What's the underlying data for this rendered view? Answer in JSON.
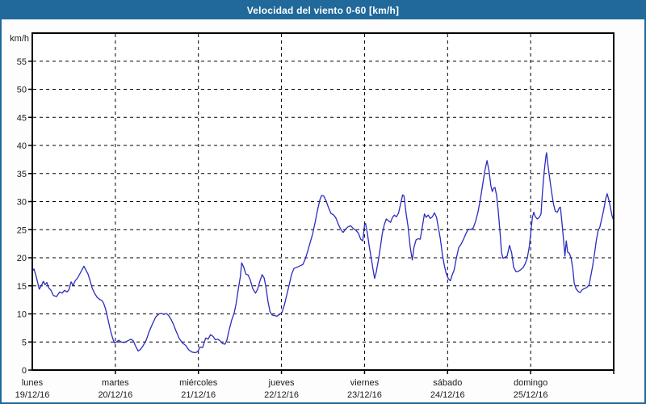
{
  "window": {
    "title": "Velocidad del viento 0-60 [km/h]"
  },
  "colors": {
    "titlebar_bg": "#21699a",
    "titlebar_text": "#ffffff",
    "frame_border": "#21699a",
    "chart_bg": "#fcfdfc",
    "plot_bg": "#ffffff",
    "axis": "#000000",
    "grid": "#000000",
    "line": "#2b2bbf",
    "text": "#1a1a1a"
  },
  "chart_data": {
    "type": "line",
    "title": "Velocidad del viento 0-60 [km/h]",
    "xlabel": "",
    "ylabel": "km/h",
    "ylim": [
      0,
      60
    ],
    "yticks": [
      0,
      5,
      10,
      15,
      20,
      25,
      30,
      35,
      40,
      45,
      50,
      55
    ],
    "grid": "dashed",
    "legend_position": "none",
    "x_unit": "hours_from_start",
    "hours_per_day": 24,
    "days": [
      {
        "name": "lunes",
        "date": "19/12/16"
      },
      {
        "name": "martes",
        "date": "20/12/16"
      },
      {
        "name": "miércoles",
        "date": "21/12/16"
      },
      {
        "name": "jueves",
        "date": "22/12/16"
      },
      {
        "name": "viernes",
        "date": "23/12/16"
      },
      {
        "name": "sábado",
        "date": "24/12/16"
      },
      {
        "name": "domingo",
        "date": "25/12/16"
      }
    ],
    "series": [
      {
        "name": "Velocidad del viento",
        "unit": "km/h",
        "points": [
          [
            0,
            17.6
          ],
          [
            0.5,
            18.0
          ],
          [
            1.2,
            16.5
          ],
          [
            2.0,
            14.4
          ],
          [
            2.6,
            15.0
          ],
          [
            3.2,
            15.8
          ],
          [
            3.7,
            15.2
          ],
          [
            4.2,
            15.6
          ],
          [
            4.7,
            14.7
          ],
          [
            5.4,
            14.2
          ],
          [
            6.1,
            13.3
          ],
          [
            7.0,
            13.1
          ],
          [
            7.9,
            13.9
          ],
          [
            8.6,
            13.7
          ],
          [
            9.3,
            14.2
          ],
          [
            10.0,
            13.9
          ],
          [
            10.6,
            14.3
          ],
          [
            11.2,
            15.7
          ],
          [
            11.8,
            15.1
          ],
          [
            12.4,
            15.9
          ],
          [
            13.1,
            16.4
          ],
          [
            13.8,
            17.2
          ],
          [
            14.5,
            18.0
          ],
          [
            14.9,
            18.5
          ],
          [
            15.5,
            17.8
          ],
          [
            16.1,
            17.1
          ],
          [
            16.7,
            15.9
          ],
          [
            17.3,
            14.6
          ],
          [
            18.0,
            13.7
          ],
          [
            18.7,
            13.0
          ],
          [
            19.4,
            12.6
          ],
          [
            20.1,
            12.4
          ],
          [
            20.6,
            11.9
          ],
          [
            21.2,
            10.8
          ],
          [
            21.9,
            8.9
          ],
          [
            22.6,
            7.0
          ],
          [
            23.3,
            5.5
          ],
          [
            23.8,
            4.8
          ],
          [
            24.3,
            5.0
          ],
          [
            25.0,
            5.3
          ],
          [
            25.7,
            5.0
          ],
          [
            26.6,
            4.9
          ],
          [
            27.5,
            5.2
          ],
          [
            28.5,
            5.5
          ],
          [
            29.2,
            5.2
          ],
          [
            29.9,
            4.2
          ],
          [
            30.6,
            3.4
          ],
          [
            31.3,
            3.7
          ],
          [
            32.0,
            4.3
          ],
          [
            32.9,
            5.3
          ],
          [
            33.8,
            6.9
          ],
          [
            34.8,
            8.3
          ],
          [
            35.7,
            9.5
          ],
          [
            36.6,
            10.0
          ],
          [
            37.3,
            10.1
          ],
          [
            38.0,
            9.9
          ],
          [
            38.7,
            10.1
          ],
          [
            39.4,
            9.7
          ],
          [
            40.1,
            9.0
          ],
          [
            40.8,
            8.1
          ],
          [
            41.5,
            7.0
          ],
          [
            42.5,
            5.6
          ],
          [
            43.4,
            4.8
          ],
          [
            44.3,
            4.4
          ],
          [
            45.2,
            3.6
          ],
          [
            46.2,
            3.2
          ],
          [
            47.1,
            3.1
          ],
          [
            47.8,
            3.3
          ],
          [
            48.5,
            4.1
          ],
          [
            49.2,
            4.0
          ],
          [
            50.1,
            5.7
          ],
          [
            50.8,
            5.5
          ],
          [
            51.5,
            6.3
          ],
          [
            52.2,
            6.0
          ],
          [
            52.9,
            5.4
          ],
          [
            53.6,
            5.5
          ],
          [
            54.3,
            5.2
          ],
          [
            55.0,
            4.7
          ],
          [
            55.7,
            4.6
          ],
          [
            56.2,
            5.3
          ],
          [
            56.9,
            7.2
          ],
          [
            57.6,
            8.9
          ],
          [
            58.3,
            10.1
          ],
          [
            58.9,
            11.8
          ],
          [
            59.5,
            14.3
          ],
          [
            60.1,
            16.6
          ],
          [
            60.5,
            19.1
          ],
          [
            61.1,
            18.3
          ],
          [
            61.7,
            17.1
          ],
          [
            62.4,
            16.9
          ],
          [
            63.0,
            16.0
          ],
          [
            63.7,
            14.5
          ],
          [
            64.5,
            13.7
          ],
          [
            65.1,
            14.4
          ],
          [
            65.8,
            15.9
          ],
          [
            66.4,
            17.0
          ],
          [
            67.0,
            16.4
          ],
          [
            67.5,
            14.8
          ],
          [
            68.1,
            12.2
          ],
          [
            68.7,
            10.4
          ],
          [
            69.3,
            9.8
          ],
          [
            70.0,
            9.7
          ],
          [
            70.7,
            9.6
          ],
          [
            71.4,
            9.9
          ],
          [
            72.1,
            10.2
          ],
          [
            72.8,
            11.5
          ],
          [
            73.5,
            13.3
          ],
          [
            74.2,
            15.1
          ],
          [
            74.9,
            17.0
          ],
          [
            75.6,
            18.1
          ],
          [
            76.5,
            18.3
          ],
          [
            77.5,
            18.6
          ],
          [
            78.2,
            18.8
          ],
          [
            78.9,
            19.8
          ],
          [
            79.6,
            21.2
          ],
          [
            80.3,
            22.7
          ],
          [
            81.0,
            24.2
          ],
          [
            81.7,
            26.2
          ],
          [
            82.4,
            28.4
          ],
          [
            83.1,
            30.3
          ],
          [
            83.6,
            31.1
          ],
          [
            84.2,
            31.0
          ],
          [
            84.9,
            30.1
          ],
          [
            85.6,
            28.9
          ],
          [
            86.3,
            27.9
          ],
          [
            87.1,
            27.6
          ],
          [
            87.7,
            27.1
          ],
          [
            88.4,
            26.0
          ],
          [
            89.1,
            25.1
          ],
          [
            89.8,
            24.5
          ],
          [
            90.5,
            25.1
          ],
          [
            91.2,
            25.5
          ],
          [
            92.0,
            25.7
          ],
          [
            92.8,
            25.2
          ],
          [
            93.5,
            24.9
          ],
          [
            94.2,
            24.4
          ],
          [
            94.9,
            23.3
          ],
          [
            95.5,
            23.0
          ],
          [
            96.0,
            25.8
          ],
          [
            96.3,
            26.1
          ],
          [
            96.8,
            24.4
          ],
          [
            97.4,
            21.9
          ],
          [
            98.0,
            19.7
          ],
          [
            98.5,
            17.8
          ],
          [
            98.9,
            16.3
          ],
          [
            99.4,
            17.5
          ],
          [
            100.0,
            19.6
          ],
          [
            100.6,
            21.9
          ],
          [
            101.1,
            24.2
          ],
          [
            101.7,
            25.9
          ],
          [
            102.3,
            26.9
          ],
          [
            102.9,
            26.6
          ],
          [
            103.5,
            26.3
          ],
          [
            104.1,
            27.2
          ],
          [
            104.6,
            27.6
          ],
          [
            105.2,
            27.3
          ],
          [
            105.8,
            27.9
          ],
          [
            106.4,
            29.5
          ],
          [
            107.0,
            31.2
          ],
          [
            107.4,
            31.0
          ],
          [
            108.0,
            27.9
          ],
          [
            108.6,
            25.5
          ],
          [
            109.2,
            21.9
          ],
          [
            109.8,
            19.6
          ],
          [
            110.3,
            21.9
          ],
          [
            110.9,
            23.2
          ],
          [
            111.5,
            23.4
          ],
          [
            112.1,
            23.3
          ],
          [
            112.7,
            25.5
          ],
          [
            113.3,
            27.8
          ],
          [
            113.8,
            27.2
          ],
          [
            114.4,
            27.6
          ],
          [
            115.0,
            27.0
          ],
          [
            115.6,
            27.3
          ],
          [
            116.2,
            28.0
          ],
          [
            116.8,
            27.2
          ],
          [
            117.3,
            25.5
          ],
          [
            117.9,
            23.4
          ],
          [
            118.5,
            20.5
          ],
          [
            119.1,
            18.5
          ],
          [
            119.6,
            17.2
          ],
          [
            120.2,
            16.3
          ],
          [
            120.8,
            15.9
          ],
          [
            121.3,
            16.9
          ],
          [
            121.9,
            17.8
          ],
          [
            122.5,
            19.8
          ],
          [
            123.2,
            21.8
          ],
          [
            123.9,
            22.4
          ],
          [
            124.6,
            23.3
          ],
          [
            125.3,
            24.3
          ],
          [
            126.0,
            25.1
          ],
          [
            126.7,
            25.0
          ],
          [
            127.4,
            25.3
          ],
          [
            128.1,
            26.5
          ],
          [
            128.8,
            28.2
          ],
          [
            129.5,
            30.5
          ],
          [
            130.2,
            33.3
          ],
          [
            130.8,
            35.6
          ],
          [
            131.4,
            37.3
          ],
          [
            132.0,
            35.4
          ],
          [
            132.5,
            32.8
          ],
          [
            132.9,
            31.8
          ],
          [
            133.3,
            32.4
          ],
          [
            133.7,
            32.5
          ],
          [
            134.2,
            31.0
          ],
          [
            134.6,
            28.5
          ],
          [
            135.1,
            25.0
          ],
          [
            135.6,
            20.9
          ],
          [
            136.0,
            19.9
          ],
          [
            136.6,
            20.1
          ],
          [
            137.2,
            20.3
          ],
          [
            137.9,
            22.2
          ],
          [
            138.5,
            20.9
          ],
          [
            139.1,
            18.3
          ],
          [
            139.8,
            17.5
          ],
          [
            140.5,
            17.6
          ],
          [
            141.2,
            17.9
          ],
          [
            141.9,
            18.3
          ],
          [
            142.4,
            18.9
          ],
          [
            143.0,
            19.9
          ],
          [
            143.6,
            21.9
          ],
          [
            144.1,
            24.8
          ],
          [
            144.5,
            27.2
          ],
          [
            144.9,
            28.1
          ],
          [
            145.3,
            27.4
          ],
          [
            145.9,
            26.9
          ],
          [
            146.5,
            27.2
          ],
          [
            147.0,
            27.8
          ],
          [
            147.4,
            31.5
          ],
          [
            147.9,
            35.3
          ],
          [
            148.4,
            38.0
          ],
          [
            148.6,
            38.7
          ],
          [
            148.9,
            37.0
          ],
          [
            149.4,
            34.6
          ],
          [
            150.0,
            31.9
          ],
          [
            150.6,
            29.6
          ],
          [
            151.1,
            28.3
          ],
          [
            151.7,
            28.1
          ],
          [
            152.3,
            28.9
          ],
          [
            152.6,
            29.0
          ],
          [
            153.1,
            26.0
          ],
          [
            153.6,
            22.5
          ],
          [
            153.9,
            20.3
          ],
          [
            154.3,
            23.0
          ],
          [
            154.7,
            21.0
          ],
          [
            155.2,
            20.8
          ],
          [
            155.7,
            19.9
          ],
          [
            156.2,
            18.0
          ],
          [
            156.6,
            15.5
          ],
          [
            157.1,
            14.5
          ],
          [
            157.7,
            14.0
          ],
          [
            158.3,
            13.8
          ],
          [
            158.9,
            14.3
          ],
          [
            159.5,
            14.5
          ],
          [
            160.2,
            14.7
          ],
          [
            160.9,
            15.2
          ],
          [
            161.4,
            16.8
          ],
          [
            161.9,
            18.5
          ],
          [
            162.4,
            20.5
          ],
          [
            163.0,
            23.2
          ],
          [
            163.5,
            24.8
          ],
          [
            164.0,
            25.5
          ],
          [
            164.5,
            26.8
          ],
          [
            165.1,
            28.5
          ],
          [
            165.7,
            30.5
          ],
          [
            166.1,
            31.4
          ],
          [
            166.6,
            30.3
          ],
          [
            167.1,
            28.8
          ],
          [
            167.5,
            27.5
          ],
          [
            168.0,
            26.6
          ]
        ]
      }
    ]
  }
}
